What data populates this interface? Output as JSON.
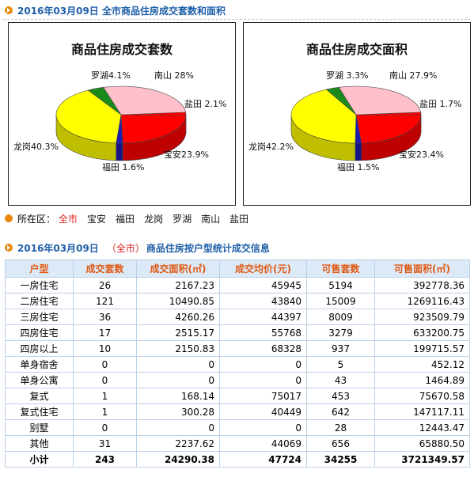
{
  "header1": {
    "title": "2016年03月09日  全市商品住房成交套数和面积"
  },
  "chart_data": [
    {
      "type": "pie",
      "title": "商品住房成交套数",
      "slices": [
        {
          "label": "南山",
          "value": 28.0,
          "text": "南山 28%",
          "color": "#ffc0cb"
        },
        {
          "label": "盐田",
          "value": 2.1,
          "text": "盐田 2.1%",
          "color": "#ff0000"
        },
        {
          "label": "宝安",
          "value": 23.9,
          "text": "宝安23.9%",
          "color": "#ff0000"
        },
        {
          "label": "福田",
          "value": 1.6,
          "text": "福田 1.6%",
          "color": "#1c1cb4"
        },
        {
          "label": "龙岗",
          "value": 40.3,
          "text": "龙岗40.3%",
          "color": "#ffff00"
        },
        {
          "label": "罗湖",
          "value": 4.1,
          "text": "罗湖4.1%",
          "color": "#1a8a1a"
        }
      ]
    },
    {
      "type": "pie",
      "title": "商品住房成交面积",
      "slices": [
        {
          "label": "南山",
          "value": 27.9,
          "text": "南山 27.9%",
          "color": "#ffc0cb"
        },
        {
          "label": "盐田",
          "value": 1.7,
          "text": "盐田 1.7%",
          "color": "#ff0000"
        },
        {
          "label": "宝安",
          "value": 23.4,
          "text": "宝安23.4%",
          "color": "#ff0000"
        },
        {
          "label": "福田",
          "value": 1.5,
          "text": "福田 1.5%",
          "color": "#1c1cb4"
        },
        {
          "label": "龙岗",
          "value": 42.2,
          "text": "龙岗42.2%",
          "color": "#ffff00"
        },
        {
          "label": "罗湖",
          "value": 3.3,
          "text": "罗湖 3.3%",
          "color": "#1a8a1a"
        }
      ]
    }
  ],
  "region_bar": {
    "label": "所在区：",
    "items": [
      "全市",
      "宝安",
      "福田",
      "龙岗",
      "罗湖",
      "南山",
      "盐田"
    ],
    "active": "全市"
  },
  "header2": {
    "date": "2016年03月09日",
    "scope": "（全市）",
    "title": "商品住房按户型统计成交信息"
  },
  "table": {
    "columns": [
      "户型",
      "成交套数",
      "成交面积(㎡)",
      "成交均价(元)",
      "可售套数",
      "可售面积(㎡)"
    ],
    "rows": [
      [
        "一房住宅",
        "26",
        "2167.23",
        "45945",
        "5194",
        "392778.36"
      ],
      [
        "二房住宅",
        "121",
        "10490.85",
        "43840",
        "15009",
        "1269116.43"
      ],
      [
        "三房住宅",
        "36",
        "4260.26",
        "44397",
        "8009",
        "923509.79"
      ],
      [
        "四房住宅",
        "17",
        "2515.17",
        "55768",
        "3279",
        "633200.75"
      ],
      [
        "四房以上",
        "10",
        "2150.83",
        "68328",
        "937",
        "199715.57"
      ],
      [
        "单身宿舍",
        "0",
        "0",
        "0",
        "5",
        "452.12"
      ],
      [
        "单身公寓",
        "0",
        "0",
        "0",
        "43",
        "1464.89"
      ],
      [
        "复式",
        "1",
        "168.14",
        "75017",
        "453",
        "75670.58"
      ],
      [
        "复式住宅",
        "1",
        "300.28",
        "40449",
        "642",
        "147117.11"
      ],
      [
        "别墅",
        "0",
        "0",
        "0",
        "28",
        "12443.47"
      ],
      [
        "其他",
        "31",
        "2237.62",
        "44069",
        "656",
        "65880.50"
      ]
    ],
    "total": [
      "小计",
      "243",
      "24290.38",
      "47724",
      "34255",
      "3721349.57"
    ]
  }
}
